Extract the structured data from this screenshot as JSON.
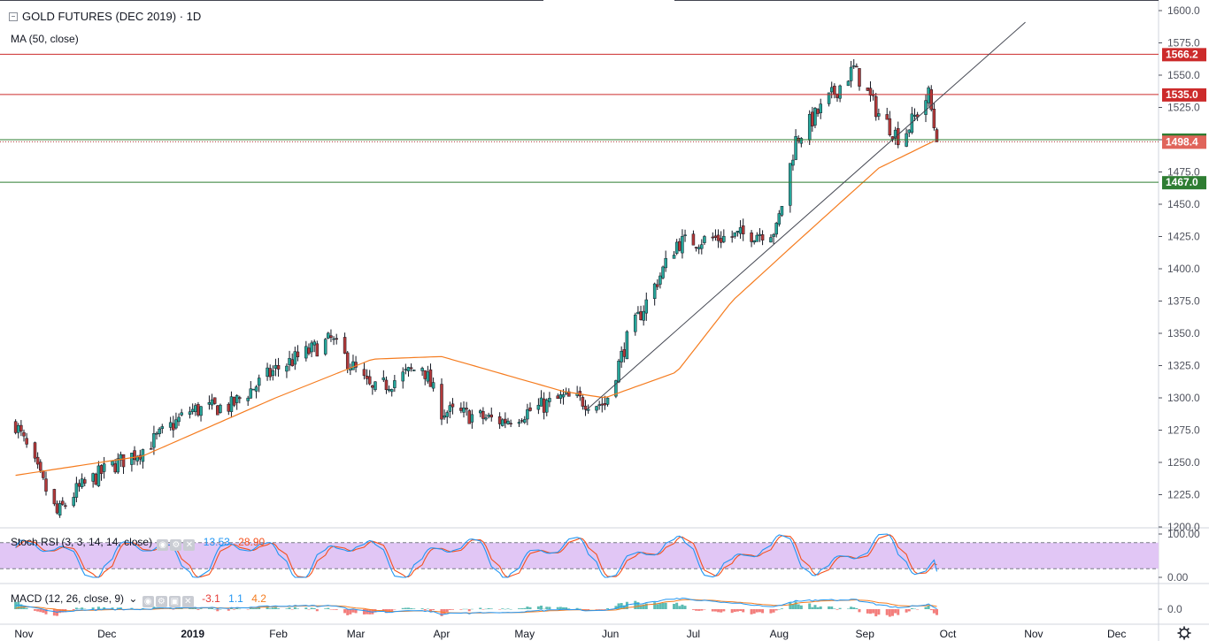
{
  "header": {
    "title": "GOLD FUTURES (DEC 2019) · 1D",
    "ma_label": "MA (50, close)"
  },
  "stoch_legend": {
    "label": "Stoch RSI (3, 3, 14, 14, close)",
    "k": "13.53",
    "d": "28.90"
  },
  "macd_legend": {
    "label": "MACD (12, 26, close, 9)",
    "hist": "-3.1",
    "macd": "1.1",
    "signal": "4.2"
  },
  "colors": {
    "up": "#26a69a",
    "down": "#b33939",
    "ma": "#f57c1f",
    "red_level": "#cc2b2b",
    "green_level": "#2e7d32",
    "k_line": "#2196f3",
    "d_line": "#f4511e",
    "stoch_band": "#e1c6f5"
  },
  "chart_data": [
    {
      "type": "candlestick",
      "title": "GOLD FUTURES (DEC 2019) · 1D",
      "x_ticks": [
        "Nov",
        "Dec",
        "2019",
        "Feb",
        "Mar",
        "Apr",
        "May",
        "Jun",
        "Jul",
        "Aug",
        "Sep",
        "Oct",
        "Nov",
        "Dec"
      ],
      "y_ticks": [
        "1600.0",
        "1575.0",
        "1550.0",
        "1525.0",
        "1500.0",
        "1475.0",
        "1450.0",
        "1425.0",
        "1400.0",
        "1375.0",
        "1350.0",
        "1325.0",
        "1300.0",
        "1275.0",
        "1250.0",
        "1225.0",
        "1200.0"
      ],
      "ylim": [
        1200,
        1600
      ],
      "ohlc_anchor_closes": [
        [
          "2018-10-29",
          1280
        ],
        [
          "2018-11-13",
          1210
        ],
        [
          "2018-11-20",
          1228
        ],
        [
          "2018-12-01",
          1245
        ],
        [
          "2018-12-14",
          1260
        ],
        [
          "2018-12-31",
          1290
        ],
        [
          "2019-01-15",
          1294
        ],
        [
          "2019-01-31",
          1322
        ],
        [
          "2019-02-20",
          1345
        ],
        [
          "2019-03-07",
          1305
        ],
        [
          "2019-03-25",
          1325
        ],
        [
          "2019-04-01",
          1290
        ],
        [
          "2019-04-23",
          1282
        ],
        [
          "2019-05-15",
          1300
        ],
        [
          "2019-05-30",
          1295
        ],
        [
          "2019-06-07",
          1345
        ],
        [
          "2019-06-25",
          1420
        ],
        [
          "2019-07-15",
          1425
        ],
        [
          "2019-07-31",
          1430
        ],
        [
          "2019-08-07",
          1500
        ],
        [
          "2019-08-28",
          1555
        ],
        [
          "2019-09-06",
          1520
        ],
        [
          "2019-09-14",
          1500
        ],
        [
          "2019-09-24",
          1535
        ],
        [
          "2019-09-27",
          1498.4
        ]
      ],
      "ma50_anchor": [
        [
          "2018-10-29",
          1240
        ],
        [
          "2018-12-14",
          1255
        ],
        [
          "2019-01-31",
          1300
        ],
        [
          "2019-03-07",
          1330
        ],
        [
          "2019-04-01",
          1332
        ],
        [
          "2019-05-15",
          1305
        ],
        [
          "2019-05-30",
          1300
        ],
        [
          "2019-06-25",
          1320
        ],
        [
          "2019-07-15",
          1375
        ],
        [
          "2019-08-07",
          1420
        ],
        [
          "2019-09-06",
          1478
        ],
        [
          "2019-09-27",
          1500
        ]
      ],
      "levels": [
        {
          "price": 1566.2,
          "label": "1566.2",
          "color": "#cc2b2b"
        },
        {
          "price": 1535.0,
          "label": "1535.0",
          "color": "#cc2b2b"
        },
        {
          "price": 1500.0,
          "label": "1500.0",
          "color": "#2e7d32"
        },
        {
          "price": 1467.0,
          "label": "1467.0",
          "color": "#2e7d32"
        }
      ],
      "last_price": {
        "price": 1498.4,
        "label": "1498.4"
      },
      "trendline": {
        "from": [
          "2019-05-23",
          1290
        ],
        "to": [
          "2019-10-29",
          1591
        ]
      }
    },
    {
      "type": "line",
      "title": "Stoch RSI (3, 3, 14, 14, close)",
      "y_ticks": [
        "100.00",
        "0.00"
      ],
      "band": [
        20,
        80
      ],
      "series": [
        {
          "name": "K",
          "last": 13.53
        },
        {
          "name": "D",
          "last": 28.9
        }
      ]
    },
    {
      "type": "bar",
      "title": "MACD (12, 26, close, 9)",
      "y_ticks": [
        "0.0"
      ],
      "series": [
        {
          "name": "Histogram",
          "last": -3.1
        },
        {
          "name": "MACD",
          "last": 1.1
        },
        {
          "name": "Signal",
          "last": 4.2
        }
      ]
    }
  ]
}
